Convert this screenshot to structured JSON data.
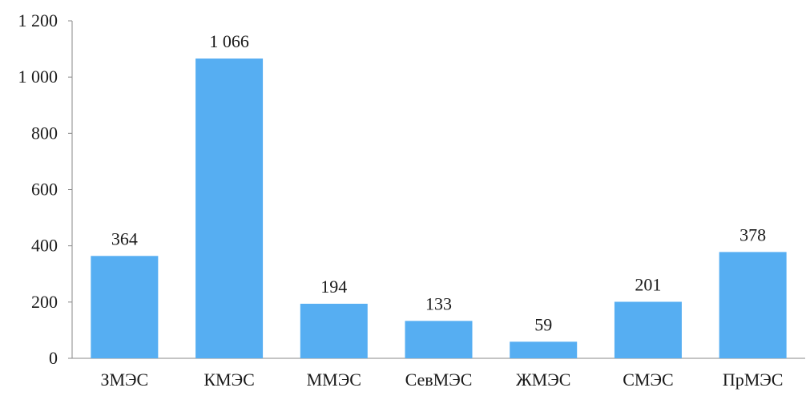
{
  "chart_data": {
    "type": "bar",
    "title": "",
    "xlabel": "",
    "ylabel": "",
    "categories": [
      "ЗМЭС",
      "КМЭС",
      "ММЭС",
      "СевМЭС",
      "ЖМЭС",
      "СМЭС",
      "ПрМЭС"
    ],
    "values": [
      364,
      1066,
      194,
      133,
      59,
      201,
      378
    ],
    "value_labels": [
      "364",
      "1 066",
      "194",
      "133",
      "59",
      "201",
      "378"
    ],
    "ylim": [
      0,
      1200
    ],
    "yticks": [
      0,
      200,
      400,
      600,
      800,
      1000,
      1200
    ],
    "ytick_labels": [
      "0",
      "200",
      "400",
      "600",
      "800",
      "1 000",
      "1 200"
    ],
    "grid": false,
    "legend": "none",
    "colors": {
      "bar": "#56aef2",
      "axis": "#888888",
      "text": "#1a1a1a"
    }
  }
}
